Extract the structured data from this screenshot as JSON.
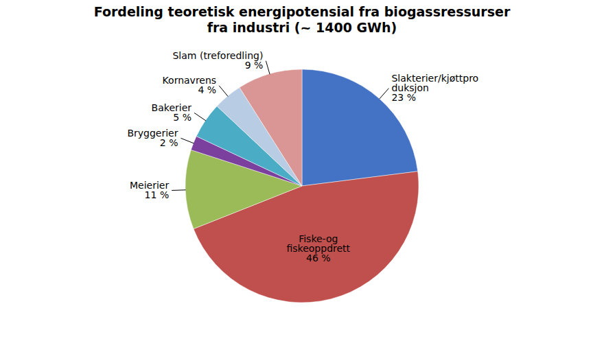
{
  "chart_data": {
    "type": "pie",
    "title": "Fordeling teoretisk energipotensial fra biogassressurser\nfra industri (~ 1400 GWh)",
    "categories": [
      "Slakterier/kjøttpro\nduksjon",
      "Fiske-og\nfiskeoppdrett",
      "Meierier",
      "Bryggerier",
      "Bakerier",
      "Kornavrens",
      "Slam (treforedling)"
    ],
    "values": [
      23,
      46,
      11,
      2,
      5,
      4,
      9
    ],
    "value_labels": [
      "23 %",
      "46 %",
      "11 %",
      "2 %",
      "5 %",
      "4 %",
      "9 %"
    ],
    "data_labels": true,
    "colors": [
      "#4472C4",
      "#C0504D",
      "#9BBB59",
      "#7B3F9E",
      "#4BACC6",
      "#B8CCE4",
      "#D99694"
    ]
  }
}
